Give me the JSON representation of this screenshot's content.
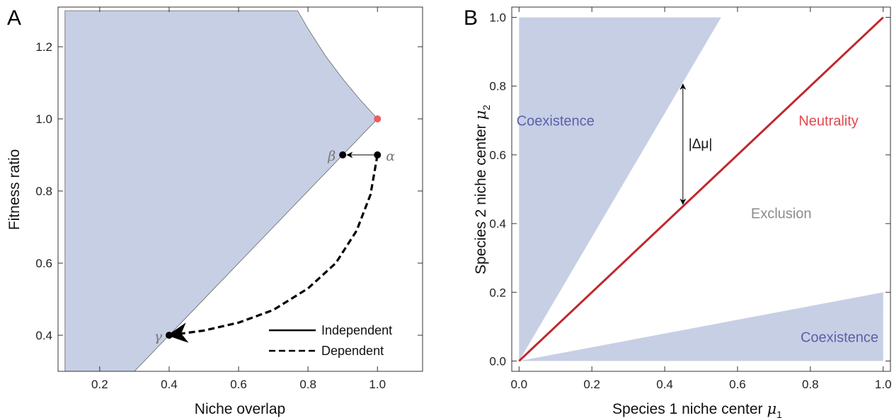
{
  "colors": {
    "region_fill": "#c7cfe5",
    "neutrality_line": "#c0282d",
    "neutral_point": "#ef5a5f",
    "coexistence_text": "#5a5faa",
    "neutrality_text": "#e0474c",
    "exclusion_text": "#8c8c8c",
    "frame": "#333333"
  },
  "chart_data": [
    {
      "panel": "A",
      "type": "area",
      "xlabel": "Niche overlap",
      "ylabel": "Fitness ratio",
      "xlim": [
        0.08,
        1.13
      ],
      "ylim": [
        0.3,
        1.31
      ],
      "xticks": [
        0.2,
        0.4,
        0.6,
        0.8,
        1.0
      ],
      "yticks": [
        0.4,
        0.6,
        0.8,
        1.0,
        1.2
      ],
      "coexistence_region": [
        [
          0.1,
          0.3
        ],
        [
          0.1,
          1.3
        ],
        [
          0.77,
          1.3
        ],
        [
          0.8,
          1.25
        ],
        [
          0.85,
          1.175
        ],
        [
          0.9,
          1.111
        ],
        [
          0.95,
          1.053
        ],
        [
          1.0,
          1.0
        ],
        [
          0.3,
          0.3
        ]
      ],
      "neutral_point": {
        "x": 1.0,
        "y": 1.0
      },
      "points": [
        {
          "label": "α",
          "x": 1.0,
          "y": 0.9
        },
        {
          "label": "β",
          "x": 0.9,
          "y": 0.9
        },
        {
          "label": "γ",
          "x": 0.4,
          "y": 0.4
        }
      ],
      "series": [
        {
          "name": "Independent",
          "style": "solid",
          "x": [
            1.0,
            0.9
          ],
          "y": [
            0.9,
            0.9
          ]
        },
        {
          "name": "Dependent",
          "style": "dashed",
          "x": [
            1.0,
            0.98,
            0.94,
            0.88,
            0.8,
            0.7,
            0.6,
            0.5,
            0.43,
            0.4
          ],
          "y": [
            0.9,
            0.79,
            0.69,
            0.6,
            0.53,
            0.47,
            0.435,
            0.413,
            0.404,
            0.4
          ]
        }
      ],
      "legend": {
        "placement": "bottom-right",
        "entries": [
          "Independent",
          "Dependent"
        ]
      }
    },
    {
      "panel": "B",
      "type": "area",
      "xlabel": "Species 1 niche center",
      "xlabel_symbol": "μ",
      "xlabel_sub": "1",
      "ylabel": "Species 2 niche center",
      "ylabel_symbol": "μ",
      "ylabel_sub": "2",
      "xlim": [
        -0.02,
        1.02
      ],
      "ylim": [
        -0.03,
        1.03
      ],
      "xticks": [
        0.0,
        0.2,
        0.4,
        0.6,
        0.8,
        1.0
      ],
      "yticks": [
        0.0,
        0.2,
        0.4,
        0.6,
        0.8,
        1.0
      ],
      "regions": [
        {
          "label": "Coexistence",
          "polygon": [
            [
              0,
              0
            ],
            [
              0,
              1
            ],
            [
              0.555,
              1
            ]
          ],
          "label_at": [
            0.1,
            0.7
          ]
        },
        {
          "label": "Coexistence",
          "polygon": [
            [
              0,
              0
            ],
            [
              1,
              0
            ],
            [
              1,
              0.2
            ]
          ],
          "label_at": [
            0.88,
            0.07
          ]
        }
      ],
      "neutrality_line": {
        "label": "Neutrality",
        "x": [
          0,
          1
        ],
        "y": [
          0,
          1
        ],
        "label_at": [
          0.85,
          0.7
        ]
      },
      "exclusion_label": {
        "text": "Exclusion",
        "at": [
          0.72,
          0.43
        ]
      },
      "delta_arrow": {
        "label": "|Δμ|",
        "x": 0.45,
        "y_from": 0.45,
        "y_to": 0.81
      }
    }
  ]
}
